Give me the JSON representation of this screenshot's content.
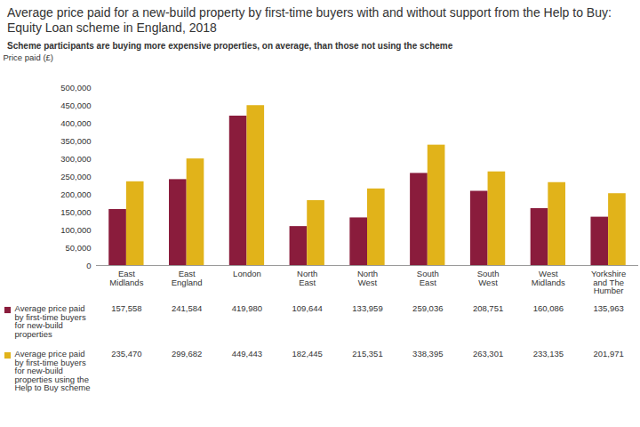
{
  "chart_data": {
    "type": "bar",
    "title": "Average price paid for a new-build property by first-time buyers with and without support from the Help to Buy: Equity Loan scheme in England, 2018",
    "subtitle": "Scheme participants are buying more expensive properties, on average, than those not using the scheme",
    "ylabel": "Price paid (£)",
    "categories": [
      "East Midlands",
      "East England",
      "London",
      "North East",
      "North West",
      "South East",
      "South West",
      "West Midlands",
      "Yorkshire and The Humber"
    ],
    "series": [
      {
        "name": "Average price paid by first-time buyers for new-build properties",
        "color": "#8a1c3c",
        "values": [
          157558,
          241584,
          419980,
          109644,
          133959,
          259036,
          208751,
          160086,
          135963
        ],
        "value_labels": [
          "157,558",
          "241,584",
          "419,980",
          "109,644",
          "133,959",
          "259,036",
          "208,751",
          "160,086",
          "135,963"
        ]
      },
      {
        "name": "Average price paid by first-time buyers for new-build properties using the Help to Buy scheme",
        "color": "#e1b31a",
        "values": [
          235470,
          299682,
          449443,
          182445,
          215351,
          338395,
          263301,
          233135,
          201971
        ],
        "value_labels": [
          "235,470",
          "299,682",
          "449,443",
          "182,445",
          "215,351",
          "338,395",
          "263,301",
          "233,135",
          "201,971"
        ]
      }
    ],
    "ylim": [
      0,
      500000
    ],
    "yticks": [
      0,
      {
        "value": 50000,
        "label": "50,000"
      },
      {
        "value": 100000,
        "label": "100,000"
      },
      {
        "value": 150000,
        "label": "150,000"
      },
      {
        "value": 200000,
        "label": "200,000"
      },
      {
        "value": 250000,
        "label": "250,000"
      },
      {
        "value": 300000,
        "label": "300,000"
      },
      {
        "value": 350000,
        "label": "350,000"
      },
      {
        "value": 400000,
        "label": "400,000"
      },
      {
        "value": 450000,
        "label": "450,000"
      },
      {
        "value": 500000,
        "label": "500,000"
      }
    ],
    "grid": false
  }
}
